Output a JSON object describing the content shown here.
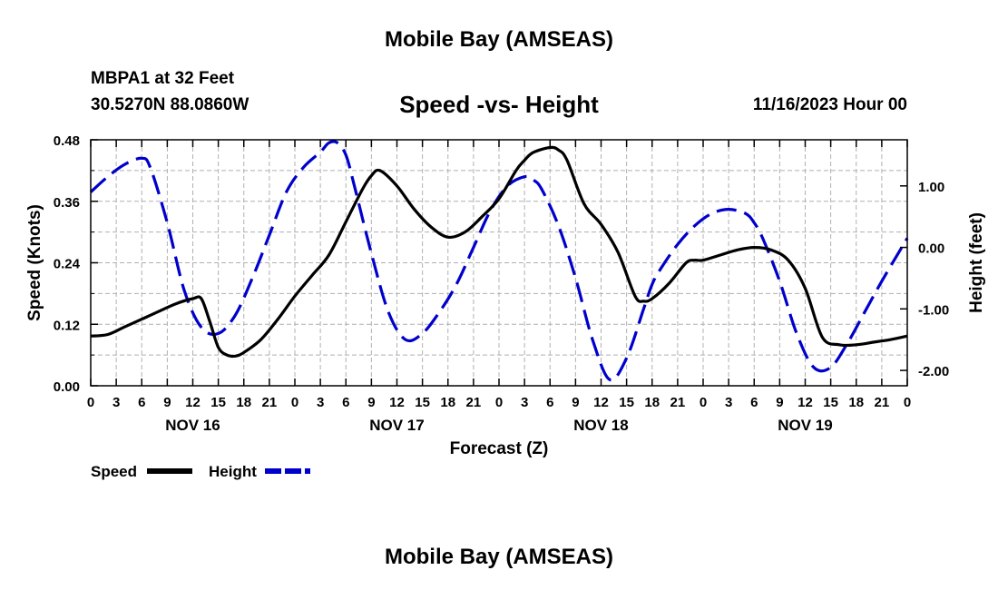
{
  "header": {
    "title": "Mobile Bay (AMSEAS)",
    "station": "MBPA1 at 32 Feet",
    "coords": "30.5270N  88.0860W",
    "subtitle": "Speed -vs- Height",
    "run_time": "11/16/2023 Hour 00"
  },
  "footer": {
    "title": "Mobile Bay (AMSEAS)"
  },
  "chart_data": {
    "type": "line",
    "xlabel": "Forecast (Z)",
    "ylabel": "Speed (Knots)",
    "ylabel_right": "Height (feet)",
    "x_tick_labels": [
      "0",
      "3",
      "6",
      "9",
      "12",
      "15",
      "18",
      "21",
      "0",
      "3",
      "6",
      "9",
      "12",
      "15",
      "18",
      "21",
      "0",
      "3",
      "6",
      "9",
      "12",
      "15",
      "18",
      "21",
      "0",
      "3",
      "6",
      "9",
      "12",
      "15",
      "18",
      "21",
      "0"
    ],
    "day_labels": [
      "NOV 16",
      "NOV 17",
      "NOV 18",
      "NOV 19"
    ],
    "xlim": [
      0,
      96
    ],
    "ylim": [
      0,
      0.48
    ],
    "y_ticks": [
      "0.00",
      "0.12",
      "0.24",
      "0.36",
      "0.48"
    ],
    "ylim_right": [
      -2.25,
      1.75
    ],
    "y_ticks_right": [
      "-2.00",
      "-1.00",
      "0.00",
      "1.00"
    ],
    "grid": true,
    "legend_position": "bottom-left",
    "colors": {
      "speed": "#000000",
      "height": "#0000cc",
      "grid": "#b0b0b0"
    },
    "series": [
      {
        "name": "Speed",
        "axis": "left",
        "style": "solid",
        "x": [
          0,
          2,
          4,
          6,
          8,
          10,
          12,
          13,
          14,
          15,
          16,
          17,
          18,
          20,
          22,
          24,
          26,
          28,
          30,
          32,
          33,
          34,
          36,
          38,
          40,
          42,
          44,
          46,
          48,
          50,
          51,
          52,
          54,
          55,
          56,
          58,
          60,
          62,
          64,
          65,
          66,
          68,
          70,
          71,
          72,
          74,
          76,
          78,
          80,
          82,
          84,
          86,
          88,
          90,
          92,
          94,
          96
        ],
        "y": [
          0.097,
          0.1,
          0.115,
          0.13,
          0.145,
          0.16,
          0.17,
          0.17,
          0.125,
          0.075,
          0.06,
          0.058,
          0.065,
          0.09,
          0.13,
          0.175,
          0.215,
          0.255,
          0.32,
          0.385,
          0.41,
          0.42,
          0.39,
          0.345,
          0.31,
          0.29,
          0.3,
          0.33,
          0.365,
          0.42,
          0.44,
          0.455,
          0.465,
          0.46,
          0.44,
          0.355,
          0.315,
          0.26,
          0.175,
          0.165,
          0.17,
          0.2,
          0.24,
          0.245,
          0.245,
          0.255,
          0.265,
          0.27,
          0.265,
          0.245,
          0.19,
          0.095,
          0.08,
          0.08,
          0.085,
          0.09,
          0.097
        ]
      },
      {
        "name": "Height",
        "axis": "right",
        "style": "dashed",
        "x": [
          0,
          2,
          4,
          6,
          7,
          9,
          11,
          13,
          15,
          17,
          19,
          21,
          23,
          25,
          27,
          28,
          29,
          30,
          31,
          33,
          35,
          37,
          39,
          41,
          43,
          45,
          47,
          49,
          51,
          52,
          53,
          55,
          57,
          59,
          61,
          63,
          65,
          66,
          67,
          69,
          71,
          73,
          75,
          77,
          78,
          79,
          81,
          83,
          85,
          87,
          89,
          91,
          93,
          96
        ],
        "y": [
          0.9,
          1.15,
          1.35,
          1.45,
          1.3,
          0.4,
          -0.7,
          -1.3,
          -1.4,
          -1.1,
          -0.5,
          0.2,
          0.9,
          1.3,
          1.55,
          1.7,
          1.7,
          1.5,
          1.0,
          -0.1,
          -1.05,
          -1.5,
          -1.4,
          -1.05,
          -0.6,
          0.0,
          0.6,
          1.0,
          1.15,
          1.1,
          0.95,
          0.35,
          -0.5,
          -1.5,
          -2.15,
          -1.8,
          -1.0,
          -0.6,
          -0.35,
          0.05,
          0.35,
          0.55,
          0.62,
          0.55,
          0.4,
          0.15,
          -0.55,
          -1.4,
          -1.95,
          -1.95,
          -1.55,
          -1.05,
          -0.55,
          0.15
        ]
      }
    ]
  }
}
